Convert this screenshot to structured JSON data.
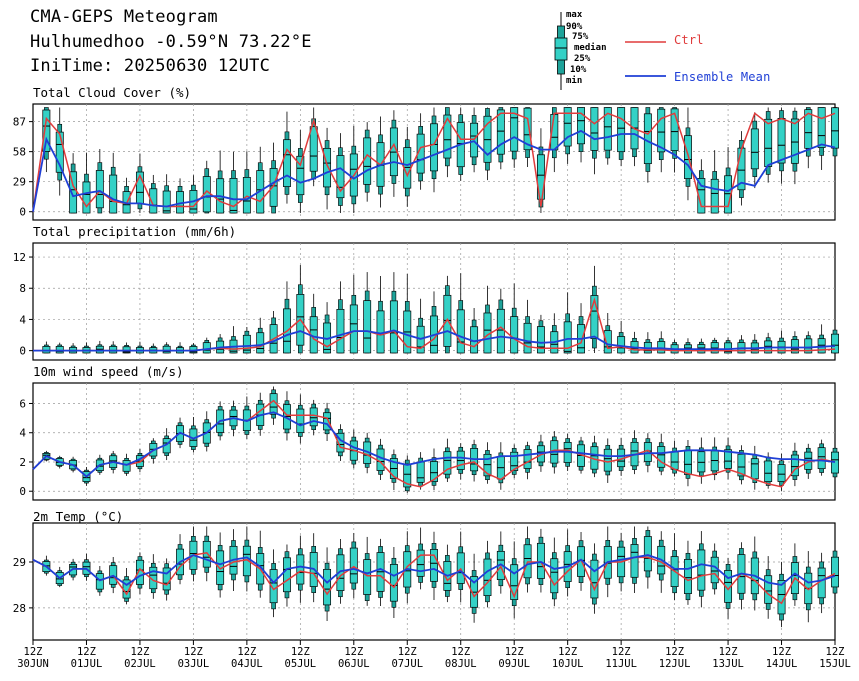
{
  "header": {
    "title": "CMA-GEPS Meteogram",
    "location": "Hulhumedhoo -0.59°N 73.22°E",
    "init_time": "IniTime: 20250630 12UTC"
  },
  "legend": {
    "box_labels": [
      "max",
      "90%",
      "75%",
      "median",
      "25%",
      "10%",
      "min"
    ],
    "ctrl": "Ctrl",
    "mean": "Ensemble Mean",
    "colors": {
      "ctrl": "#e03c3c",
      "mean": "#1f3fd6",
      "box": "#1ea39a",
      "box_inner": "#34d1c6"
    }
  },
  "x_axis": {
    "ticks": [
      {
        "top": "12Z",
        "bottom": "30JUN"
      },
      {
        "top": "12Z",
        "bottom": "01JUL"
      },
      {
        "top": "12Z",
        "bottom": "02JUL"
      },
      {
        "top": "12Z",
        "bottom": "03JUL"
      },
      {
        "top": "12Z",
        "bottom": "04JUL"
      },
      {
        "top": "12Z",
        "bottom": "05JUL"
      },
      {
        "top": "12Z",
        "bottom": "06JUL"
      },
      {
        "top": "12Z",
        "bottom": "07JUL"
      },
      {
        "top": "12Z",
        "bottom": "08JUL"
      },
      {
        "top": "12Z",
        "bottom": "09JUL"
      },
      {
        "top": "12Z",
        "bottom": "10JUL"
      },
      {
        "top": "12Z",
        "bottom": "11JUL"
      },
      {
        "top": "12Z",
        "bottom": "12JUL"
      },
      {
        "top": "12Z",
        "bottom": "13JUL"
      },
      {
        "top": "12Z",
        "bottom": "14JUL"
      },
      {
        "top": "12Z",
        "bottom": "15JUL"
      }
    ]
  },
  "chart_data": [
    {
      "type": "box",
      "title": "Total Cloud Cover (%)",
      "ylim": [
        -8,
        104
      ],
      "yticks": [
        0,
        29,
        58,
        87
      ],
      "grid": true,
      "ctrl": [
        0,
        90,
        75,
        25,
        5,
        20,
        10,
        8,
        35,
        6,
        5,
        5,
        5,
        20,
        10,
        5,
        15,
        10,
        25,
        60,
        45,
        88,
        45,
        20,
        35,
        55,
        45,
        65,
        35,
        62,
        65,
        90,
        70,
        70,
        85,
        95,
        95,
        90,
        5,
        95,
        95,
        95,
        85,
        95,
        90,
        80,
        75,
        90,
        95,
        55,
        5,
        5,
        5,
        60,
        95,
        85,
        90,
        85,
        95,
        90,
        95
      ],
      "mean": [
        0,
        70,
        45,
        15,
        18,
        20,
        12,
        8,
        8,
        6,
        5,
        8,
        10,
        15,
        15,
        12,
        12,
        20,
        28,
        35,
        28,
        32,
        38,
        42,
        32,
        40,
        45,
        48,
        45,
        50,
        55,
        60,
        65,
        68,
        55,
        65,
        72,
        65,
        60,
        60,
        72,
        78,
        70,
        72,
        75,
        75,
        68,
        62,
        55,
        45,
        25,
        22,
        20,
        28,
        25,
        45,
        50,
        55,
        60,
        65,
        62
      ]
    },
    {
      "type": "box",
      "title": "Total precipitation (mm/6h)",
      "ylim": [
        -1.2,
        13.8
      ],
      "yticks": [
        0,
        4,
        8,
        12
      ],
      "grid": true,
      "ctrl": [
        0,
        0,
        0,
        0,
        0,
        0,
        0,
        0,
        0,
        0,
        0,
        0,
        0,
        0.2,
        0.3,
        0.2,
        0.3,
        0.5,
        1.5,
        2.5,
        4.0,
        1.5,
        0.5,
        1.5,
        2.5,
        2.5,
        2.0,
        2.5,
        0.5,
        0.3,
        1.5,
        4.0,
        1.0,
        0.5,
        2.0,
        3.0,
        1.5,
        0.5,
        0.3,
        0.3,
        0.3,
        1.0,
        6.5,
        0.3,
        0.5,
        0.1,
        0.1,
        0.1,
        0,
        0,
        0,
        0,
        0,
        0,
        0,
        0,
        0,
        0,
        0,
        0.1,
        0.2
      ],
      "mean": [
        0,
        0,
        0,
        0,
        0,
        0,
        0,
        0,
        0,
        0,
        0,
        0,
        0,
        0.2,
        0.4,
        0.5,
        0.6,
        0.7,
        1.2,
        2.0,
        2.5,
        1.8,
        1.5,
        2.0,
        2.5,
        2.5,
        2.2,
        2.6,
        2.0,
        1.5,
        2.0,
        2.5,
        1.8,
        1.2,
        1.5,
        1.8,
        1.6,
        1.2,
        1.0,
        1.1,
        1.5,
        1.5,
        1.8,
        0.8,
        0.6,
        0.4,
        0.3,
        0.3,
        0.2,
        0.2,
        0.2,
        0.2,
        0.2,
        0.3,
        0.3,
        0.4,
        0.4,
        0.4,
        0.4,
        0.5,
        0.6
      ]
    },
    {
      "type": "box",
      "title": "10m wind speed (m/s)",
      "ylim": [
        -0.6,
        7.4
      ],
      "yticks": [
        0,
        2,
        4,
        6
      ],
      "grid": true,
      "ctrl": [
        1.5,
        2.4,
        2.0,
        1.8,
        1.0,
        1.8,
        2.0,
        1.8,
        2.0,
        2.8,
        3.2,
        4.0,
        3.6,
        4.0,
        4.8,
        5.0,
        4.8,
        5.5,
        6.2,
        5.2,
        5.2,
        5.2,
        5.0,
        3.0,
        2.8,
        2.5,
        2.0,
        1.0,
        0.5,
        0.3,
        0.8,
        1.5,
        1.8,
        2.0,
        1.2,
        0.8,
        1.5,
        2.0,
        2.5,
        2.8,
        2.8,
        2.5,
        2.2,
        2.0,
        2.2,
        2.5,
        2.8,
        2.0,
        1.5,
        1.2,
        1.0,
        1.2,
        1.5,
        1.2,
        0.8,
        0.5,
        0.3,
        1.5,
        2.0,
        2.2,
        2.0
      ],
      "mean": [
        1.5,
        2.4,
        2.0,
        1.8,
        1.0,
        1.8,
        2.0,
        1.8,
        2.2,
        2.8,
        3.2,
        4.0,
        3.6,
        4.0,
        4.8,
        5.0,
        4.8,
        5.2,
        5.4,
        5.0,
        4.5,
        4.8,
        4.6,
        3.5,
        3.0,
        2.7,
        2.3,
        2.0,
        1.8,
        2.0,
        2.2,
        2.3,
        2.3,
        2.2,
        2.2,
        2.4,
        2.4,
        2.5,
        2.6,
        2.7,
        2.7,
        2.6,
        2.5,
        2.4,
        2.4,
        2.5,
        2.6,
        2.6,
        2.7,
        2.8,
        2.8,
        2.8,
        2.7,
        2.6,
        2.5,
        2.3,
        2.2,
        2.2,
        2.1,
        2.1,
        2.0
      ]
    },
    {
      "type": "box",
      "title": "2m Temp (°C)",
      "ylim": [
        27.3,
        29.85
      ],
      "yticks": [
        28,
        29
      ],
      "grid": true,
      "ctrl": [
        29.05,
        28.9,
        28.65,
        28.85,
        28.85,
        28.6,
        28.7,
        28.3,
        28.85,
        28.6,
        28.5,
        28.9,
        29.15,
        29.2,
        28.85,
        29.0,
        29.05,
        28.85,
        28.4,
        28.6,
        28.8,
        28.75,
        28.3,
        28.7,
        28.9,
        28.7,
        28.7,
        28.45,
        28.9,
        29.15,
        29.15,
        28.6,
        28.85,
        28.25,
        28.55,
        28.9,
        28.25,
        29.0,
        29.0,
        28.5,
        28.8,
        29.05,
        28.4,
        29.0,
        29.0,
        29.1,
        29.1,
        29.0,
        28.8,
        28.6,
        28.7,
        28.75,
        28.4,
        28.75,
        28.6,
        28.3,
        28.1,
        28.65,
        28.4,
        28.6,
        28.75
      ],
      "mean": [
        29.05,
        28.9,
        28.65,
        28.85,
        28.85,
        28.6,
        28.7,
        28.5,
        28.7,
        28.8,
        28.75,
        29.0,
        29.15,
        29.05,
        28.95,
        29.05,
        29.1,
        28.9,
        28.55,
        28.85,
        28.9,
        28.85,
        28.55,
        28.8,
        28.85,
        28.75,
        28.85,
        28.7,
        28.85,
        28.8,
        28.85,
        28.7,
        28.8,
        28.55,
        28.8,
        28.95,
        28.75,
        28.95,
        29.0,
        28.85,
        28.9,
        29.05,
        28.8,
        29.0,
        29.05,
        29.1,
        29.15,
        29.05,
        28.85,
        28.85,
        28.95,
        28.9,
        28.65,
        28.75,
        28.7,
        28.55,
        28.5,
        28.75,
        28.55,
        28.6,
        28.7
      ]
    }
  ]
}
